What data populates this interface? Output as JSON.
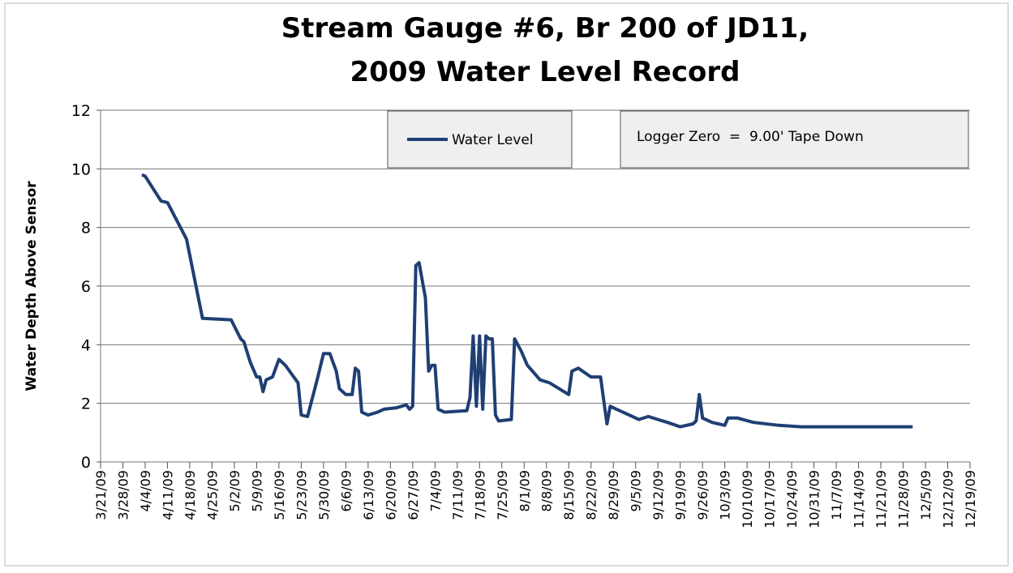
{
  "chart_data": {
    "type": "line",
    "title": [
      "Stream Gauge #6, Br 200 of JD11,",
      "2009 Water Level Record"
    ],
    "y_label": "Water Depth Above Sensor",
    "annotation": "Logger Zero  =  9.00' Tape Down",
    "legend": "top",
    "grid": true,
    "ylim": [
      0,
      12
    ],
    "yticks": [
      0,
      2,
      4,
      6,
      8,
      10,
      12
    ],
    "xlim": [
      "2009-03-21",
      "2009-12-19"
    ],
    "xticks": [
      {
        "value": "2009-03-21",
        "label": "3/21/09"
      },
      {
        "value": "2009-03-28",
        "label": "3/28/09"
      },
      {
        "value": "2009-04-04",
        "label": "4/4/09"
      },
      {
        "value": "2009-04-11",
        "label": "4/11/09"
      },
      {
        "value": "2009-04-18",
        "label": "4/18/09"
      },
      {
        "value": "2009-04-25",
        "label": "4/25/09"
      },
      {
        "value": "2009-05-02",
        "label": "5/2/09"
      },
      {
        "value": "2009-05-09",
        "label": "5/9/09"
      },
      {
        "value": "2009-05-16",
        "label": "5/16/09"
      },
      {
        "value": "2009-05-23",
        "label": "5/23/09"
      },
      {
        "value": "2009-05-30",
        "label": "5/30/09"
      },
      {
        "value": "2009-06-06",
        "label": "6/6/09"
      },
      {
        "value": "2009-06-13",
        "label": "6/13/09"
      },
      {
        "value": "2009-06-20",
        "label": "6/20/09"
      },
      {
        "value": "2009-06-27",
        "label": "6/27/09"
      },
      {
        "value": "2009-07-04",
        "label": "7/4/09"
      },
      {
        "value": "2009-07-11",
        "label": "7/11/09"
      },
      {
        "value": "2009-07-18",
        "label": "7/18/09"
      },
      {
        "value": "2009-07-25",
        "label": "7/25/09"
      },
      {
        "value": "2009-08-01",
        "label": "8/1/09"
      },
      {
        "value": "2009-08-08",
        "label": "8/8/09"
      },
      {
        "value": "2009-08-15",
        "label": "8/15/09"
      },
      {
        "value": "2009-08-22",
        "label": "8/22/09"
      },
      {
        "value": "2009-08-29",
        "label": "8/29/09"
      },
      {
        "value": "2009-09-05",
        "label": "9/5/09"
      },
      {
        "value": "2009-09-12",
        "label": "9/12/09"
      },
      {
        "value": "2009-09-19",
        "label": "9/19/09"
      },
      {
        "value": "2009-09-26",
        "label": "9/26/09"
      },
      {
        "value": "2009-10-03",
        "label": "10/3/09"
      },
      {
        "value": "2009-10-10",
        "label": "10/10/09"
      },
      {
        "value": "2009-10-17",
        "label": "10/17/09"
      },
      {
        "value": "2009-10-24",
        "label": "10/24/09"
      },
      {
        "value": "2009-10-31",
        "label": "10/31/09"
      },
      {
        "value": "2009-11-07",
        "label": "11/7/09"
      },
      {
        "value": "2009-11-14",
        "label": "11/14/09"
      },
      {
        "value": "2009-11-21",
        "label": "11/21/09"
      },
      {
        "value": "2009-11-28",
        "label": "11/28/09"
      },
      {
        "value": "2009-12-05",
        "label": "12/5/09"
      },
      {
        "value": "2009-12-12",
        "label": "12/12/09"
      },
      {
        "value": "2009-12-19",
        "label": "12/19/09"
      }
    ],
    "x": [
      "2009-04-03",
      "2009-04-04",
      "2009-04-09",
      "2009-04-11",
      "2009-04-17",
      "2009-04-22",
      "2009-05-01",
      "2009-05-04",
      "2009-05-05",
      "2009-05-07",
      "2009-05-09",
      "2009-05-10",
      "2009-05-11",
      "2009-05-12",
      "2009-05-14",
      "2009-05-16",
      "2009-05-18",
      "2009-05-20",
      "2009-05-22",
      "2009-05-23",
      "2009-05-25",
      "2009-05-28",
      "2009-05-30",
      "2009-06-01",
      "2009-06-03",
      "2009-06-04",
      "2009-06-06",
      "2009-06-08",
      "2009-06-09",
      "2009-06-10",
      "2009-06-11",
      "2009-06-13",
      "2009-06-16",
      "2009-06-18",
      "2009-06-22",
      "2009-06-25",
      "2009-06-26",
      "2009-06-27",
      "2009-06-28",
      "2009-06-29",
      "2009-06-30",
      "2009-07-01",
      "2009-07-02",
      "2009-07-03",
      "2009-07-04",
      "2009-07-05",
      "2009-07-07",
      "2009-07-14",
      "2009-07-15",
      "2009-07-16",
      "2009-07-17",
      "2009-07-18",
      "2009-07-19",
      "2009-07-20",
      "2009-07-21",
      "2009-07-22",
      "2009-07-23",
      "2009-07-24",
      "2009-07-28",
      "2009-07-29",
      "2009-07-31",
      "2009-08-02",
      "2009-08-06",
      "2009-08-09",
      "2009-08-15",
      "2009-08-16",
      "2009-08-18",
      "2009-08-22",
      "2009-08-25",
      "2009-08-26",
      "2009-08-27",
      "2009-08-28",
      "2009-08-30",
      "2009-09-03",
      "2009-09-06",
      "2009-09-09",
      "2009-09-12",
      "2009-09-15",
      "2009-09-19",
      "2009-09-23",
      "2009-09-24",
      "2009-09-25",
      "2009-09-26",
      "2009-09-29",
      "2009-10-03",
      "2009-10-04",
      "2009-10-07",
      "2009-10-12",
      "2009-10-20",
      "2009-10-27",
      "2009-11-12",
      "2009-12-01"
    ],
    "series": [
      {
        "name": "Water Level",
        "color": "#1f3f73",
        "values": [
          9.8,
          9.75,
          8.9,
          8.85,
          7.6,
          4.9,
          4.85,
          4.2,
          4.1,
          3.4,
          2.9,
          2.9,
          2.4,
          2.8,
          2.9,
          3.5,
          3.3,
          3.0,
          2.7,
          1.6,
          1.55,
          2.8,
          3.7,
          3.7,
          3.1,
          2.5,
          2.3,
          2.3,
          3.2,
          3.1,
          1.7,
          1.6,
          1.7,
          1.8,
          1.85,
          1.95,
          1.8,
          1.9,
          6.7,
          6.8,
          6.2,
          5.6,
          3.1,
          3.3,
          3.3,
          1.8,
          1.7,
          1.75,
          2.2,
          4.3,
          1.9,
          4.3,
          1.8,
          4.3,
          4.2,
          4.2,
          1.6,
          1.4,
          1.45,
          4.2,
          3.8,
          3.3,
          2.8,
          2.7,
          2.3,
          3.1,
          3.2,
          2.9,
          2.9,
          2.1,
          1.3,
          1.9,
          1.8,
          1.6,
          1.45,
          1.55,
          1.45,
          1.35,
          1.2,
          1.3,
          1.4,
          2.3,
          1.5,
          1.35,
          1.25,
          1.5,
          1.5,
          1.35,
          1.25,
          1.2,
          1.2,
          1.2
        ]
      }
    ]
  }
}
